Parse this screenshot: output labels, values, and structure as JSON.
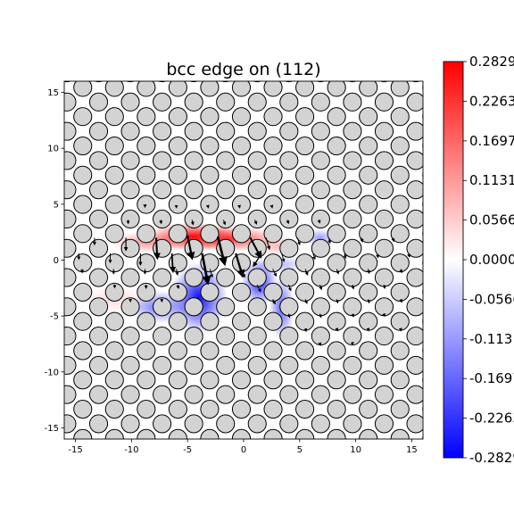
{
  "chart_data": {
    "type": "heatmap",
    "title": "bcc edge on (112)",
    "xlabel": "",
    "ylabel": "",
    "xlim": [
      -16,
      16
    ],
    "ylim": [
      -16,
      16
    ],
    "x_ticks": [
      -15,
      -10,
      -5,
      0,
      5,
      10,
      15
    ],
    "y_ticks": [
      -15,
      -10,
      -5,
      0,
      5,
      10,
      15
    ],
    "grid": false,
    "colormap": "bwr",
    "colorbar": {
      "range": [
        -0.2829,
        0.2829
      ],
      "tick_values": [
        0.2829,
        0.2263,
        0.1697,
        0.1131,
        0.0566,
        0.0,
        -0.0566,
        -0.1131,
        -0.1697,
        -0.2263,
        -0.2829
      ],
      "tick_labels": [
        "0.2829",
        "0.2263",
        "0.1697",
        "0.1131",
        "0.0566",
        "0.0000",
        "-0.0566",
        "-0.1131",
        "-0.1697",
        "-0.2263",
        "-0.2829"
      ]
    },
    "lattice": {
      "a1": [
        2.83,
        0
      ],
      "a2": [
        1.415,
        1.308
      ],
      "origin": [
        -0.2,
        -0.25
      ]
    },
    "field_blobs": [
      {
        "x": -4.5,
        "y": 2.1,
        "sx": 2.6,
        "sy": 0.8,
        "value": 0.27
      },
      {
        "x": -1.2,
        "y": 1.9,
        "sx": 2.8,
        "sy": 0.7,
        "value": 0.22
      },
      {
        "x": -8.5,
        "y": 1.6,
        "sx": 2.2,
        "sy": 0.6,
        "value": 0.12
      },
      {
        "x": 3.0,
        "y": 1.3,
        "sx": 1.2,
        "sy": 0.6,
        "value": 0.08
      },
      {
        "x": -4.0,
        "y": -3.4,
        "sx": 1.6,
        "sy": 2.0,
        "value": -0.27
      },
      {
        "x": -7.5,
        "y": -4.2,
        "sx": 1.8,
        "sy": 0.9,
        "value": -0.16
      },
      {
        "x": 1.4,
        "y": -2.0,
        "sx": 1.0,
        "sy": 1.3,
        "value": -0.24
      },
      {
        "x": 3.4,
        "y": -4.3,
        "sx": 0.7,
        "sy": 1.8,
        "value": -0.18
      },
      {
        "x": 6.8,
        "y": 2.0,
        "sx": 0.9,
        "sy": 0.5,
        "value": -0.11
      },
      {
        "x": 3.3,
        "y": -0.4,
        "sx": 1.5,
        "sy": 0.5,
        "value": -0.08
      },
      {
        "x": -11.5,
        "y": -3.5,
        "sx": 2.0,
        "sy": 0.8,
        "value": 0.04
      }
    ],
    "displacement_scale": 1.0,
    "displacements": [
      {
        "x": -5.0,
        "y": 2.2,
        "dx": 0.4,
        "dy": -2.0
      },
      {
        "x": -3.7,
        "y": 0.6,
        "dx": 0.5,
        "dy": -2.6
      },
      {
        "x": -2.3,
        "y": 2.1,
        "dx": 0.6,
        "dy": -2.4
      },
      {
        "x": -0.7,
        "y": 0.6,
        "dx": 0.6,
        "dy": -2.0
      },
      {
        "x": 0.6,
        "y": 2.0,
        "dx": 0.9,
        "dy": -1.7
      },
      {
        "x": 1.6,
        "y": 0.6,
        "dx": -0.7,
        "dy": -1.1
      },
      {
        "x": -7.8,
        "y": 2.0,
        "dx": 0.1,
        "dy": -1.8
      },
      {
        "x": -6.4,
        "y": 0.6,
        "dx": 0.1,
        "dy": -1.6
      },
      {
        "x": -9.2,
        "y": 0.6,
        "dx": 0.0,
        "dy": -1.0
      },
      {
        "x": -10.5,
        "y": 2.0,
        "dx": 0.0,
        "dy": -1.1
      },
      {
        "x": -11.9,
        "y": 0.6,
        "dx": 0.0,
        "dy": -0.8
      },
      {
        "x": 2.0,
        "y": 2.0,
        "dx": 0.3,
        "dy": -1.0
      },
      {
        "x": -13.3,
        "y": 2.0,
        "dx": 0.0,
        "dy": -0.6
      },
      {
        "x": -14.7,
        "y": 0.6,
        "dx": 0.0,
        "dy": -0.5
      },
      {
        "x": 3.4,
        "y": 0.6,
        "dx": 0.2,
        "dy": -0.7
      },
      {
        "x": 4.8,
        "y": 2.0,
        "dx": 0.2,
        "dy": -0.6
      },
      {
        "x": 6.2,
        "y": 0.6,
        "dx": 0.15,
        "dy": -0.5
      },
      {
        "x": 7.6,
        "y": 2.0,
        "dx": 0.1,
        "dy": -0.45
      },
      {
        "x": 9.0,
        "y": 0.6,
        "dx": 0.1,
        "dy": -0.4
      },
      {
        "x": 10.5,
        "y": 2.0,
        "dx": 0.1,
        "dy": -0.35
      },
      {
        "x": 11.9,
        "y": 0.6,
        "dx": 0.1,
        "dy": -0.35
      },
      {
        "x": 13.3,
        "y": 2.0,
        "dx": 0.1,
        "dy": -0.3
      },
      {
        "x": 14.7,
        "y": 0.6,
        "dx": 0.1,
        "dy": -0.3
      },
      {
        "x": -3.0,
        "y": -0.8,
        "dx": 0.2,
        "dy": -0.7
      },
      {
        "x": -6.0,
        "y": -0.8,
        "dx": 0.1,
        "dy": -0.5
      },
      {
        "x": -0.2,
        "y": -0.8,
        "dx": 0.3,
        "dy": -0.7
      },
      {
        "x": 2.6,
        "y": -0.8,
        "dx": 0.3,
        "dy": -0.6
      },
      {
        "x": 5.5,
        "y": -0.8,
        "dx": 0.2,
        "dy": -0.5
      },
      {
        "x": 8.3,
        "y": -0.8,
        "dx": 0.15,
        "dy": -0.4
      },
      {
        "x": 11.1,
        "y": -0.8,
        "dx": 0.1,
        "dy": -0.35
      },
      {
        "x": 14.0,
        "y": -0.8,
        "dx": 0.1,
        "dy": -0.3
      },
      {
        "x": -8.8,
        "y": -0.8,
        "dx": 0.0,
        "dy": -0.4
      },
      {
        "x": -11.6,
        "y": -0.8,
        "dx": 0.0,
        "dy": -0.4
      },
      {
        "x": -14.4,
        "y": -0.8,
        "dx": 0.0,
        "dy": -0.3
      },
      {
        "x": 1.2,
        "y": -2.2,
        "dx": 0.3,
        "dy": -0.6
      },
      {
        "x": 4.0,
        "y": -2.2,
        "dx": 0.2,
        "dy": -0.5
      },
      {
        "x": 6.8,
        "y": -2.2,
        "dx": 0.15,
        "dy": -0.4
      },
      {
        "x": 9.7,
        "y": -2.2,
        "dx": 0.1,
        "dy": -0.35
      },
      {
        "x": 12.5,
        "y": -2.2,
        "dx": 0.1,
        "dy": -0.3
      },
      {
        "x": 2.6,
        "y": -3.5,
        "dx": 0.2,
        "dy": -0.4
      },
      {
        "x": 5.5,
        "y": -3.5,
        "dx": 0.15,
        "dy": -0.35
      },
      {
        "x": 8.3,
        "y": -3.5,
        "dx": 0.1,
        "dy": -0.3
      },
      {
        "x": 11.1,
        "y": -3.5,
        "dx": 0.1,
        "dy": -0.3
      },
      {
        "x": 14.0,
        "y": -3.5,
        "dx": 0.1,
        "dy": -0.25
      },
      {
        "x": 4.0,
        "y": -4.8,
        "dx": 0.1,
        "dy": -0.3
      },
      {
        "x": 6.8,
        "y": -4.8,
        "dx": 0.1,
        "dy": -0.3
      },
      {
        "x": 9.7,
        "y": -4.8,
        "dx": 0.1,
        "dy": -0.25
      },
      {
        "x": 12.5,
        "y": -4.8,
        "dx": 0.08,
        "dy": -0.2
      },
      {
        "x": 5.5,
        "y": -6.1,
        "dx": 0.08,
        "dy": -0.25
      },
      {
        "x": 8.3,
        "y": -6.1,
        "dx": 0.08,
        "dy": -0.2
      },
      {
        "x": 11.1,
        "y": -6.1,
        "dx": 0.05,
        "dy": -0.2
      },
      {
        "x": 14.0,
        "y": -6.1,
        "dx": 0.05,
        "dy": -0.2
      },
      {
        "x": 6.8,
        "y": -7.4,
        "dx": 0.05,
        "dy": -0.2
      },
      {
        "x": 9.7,
        "y": -7.4,
        "dx": 0.05,
        "dy": -0.15
      },
      {
        "x": -4.6,
        "y": 3.6,
        "dx": 0.1,
        "dy": -0.4
      },
      {
        "x": -1.8,
        "y": 3.6,
        "dx": 0.15,
        "dy": -0.4
      },
      {
        "x": 1.0,
        "y": 3.6,
        "dx": 0.15,
        "dy": -0.35
      },
      {
        "x": -7.4,
        "y": 3.6,
        "dx": 0.05,
        "dy": -0.3
      },
      {
        "x": -10.3,
        "y": 3.6,
        "dx": 0.0,
        "dy": -0.3
      },
      {
        "x": 3.9,
        "y": 3.6,
        "dx": 0.1,
        "dy": -0.3
      },
      {
        "x": 6.7,
        "y": 3.6,
        "dx": 0.1,
        "dy": -0.25
      },
      {
        "x": -3.2,
        "y": 4.9,
        "dx": 0.05,
        "dy": -0.2
      },
      {
        "x": -0.4,
        "y": 4.9,
        "dx": 0.05,
        "dy": -0.2
      },
      {
        "x": 2.5,
        "y": 4.9,
        "dx": 0.05,
        "dy": -0.2
      },
      {
        "x": -6.0,
        "y": 4.9,
        "dx": 0.0,
        "dy": -0.2
      },
      {
        "x": -8.8,
        "y": 4.9,
        "dx": 0.0,
        "dy": -0.15
      },
      {
        "x": -5.9,
        "y": -2.2,
        "dx": 0.1,
        "dy": -0.3
      },
      {
        "x": -8.7,
        "y": -2.2,
        "dx": 0.0,
        "dy": -0.3
      },
      {
        "x": -11.5,
        "y": -2.2,
        "dx": 0.0,
        "dy": -0.25
      },
      {
        "x": -7.3,
        "y": -3.5,
        "dx": 0.0,
        "dy": -0.2
      },
      {
        "x": -10.1,
        "y": -3.5,
        "dx": 0.0,
        "dy": -0.2
      }
    ]
  }
}
